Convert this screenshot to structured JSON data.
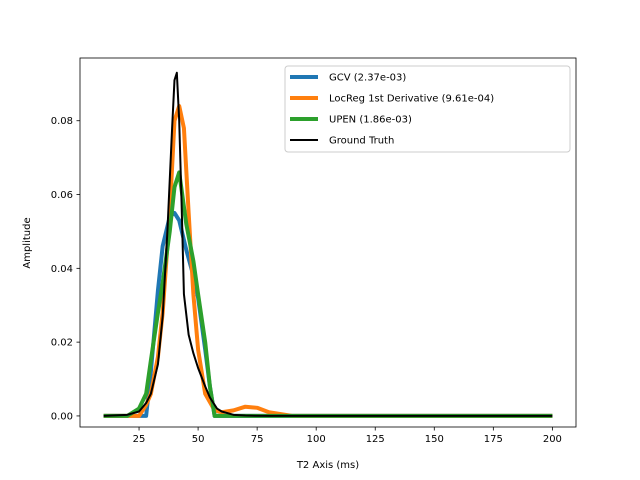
{
  "chart_data": {
    "type": "line",
    "xlabel": "T2 Axis (ms)",
    "ylabel": "Amplitude",
    "xlim": [
      0,
      210
    ],
    "ylim": [
      -0.003,
      0.097
    ],
    "xticks": [
      25,
      50,
      75,
      100,
      125,
      150,
      175,
      200
    ],
    "yticks": [
      0.0,
      0.02,
      0.04,
      0.06,
      0.08
    ],
    "ytick_labels": [
      "0.00",
      "0.02",
      "0.04",
      "0.06",
      "0.08"
    ],
    "grid": false,
    "legend_position": "top-right",
    "series": [
      {
        "name": "GCV  (2.37e-03)",
        "color": "#1f77b4",
        "x": [
          10,
          20,
          25,
          28,
          30,
          33,
          35,
          38,
          40,
          42,
          45,
          48,
          50,
          53,
          55,
          57,
          60,
          70,
          80,
          100,
          150,
          200
        ],
        "y": [
          0,
          0,
          0,
          0,
          0.012,
          0.034,
          0.046,
          0.054,
          0.055,
          0.053,
          0.045,
          0.038,
          0.032,
          0.018,
          0.008,
          0,
          0,
          0,
          0,
          0,
          0,
          0
        ]
      },
      {
        "name": "LocReg  1st Derivative (9.61e-04)",
        "color": "#ff7f0e",
        "x": [
          10,
          20,
          25,
          28,
          30,
          33,
          35,
          38,
          40,
          42,
          44,
          46,
          48,
          50,
          53,
          57,
          60,
          65,
          70,
          75,
          80,
          90,
          100,
          150,
          200
        ],
        "y": [
          0,
          0,
          0,
          0.003,
          0.006,
          0.016,
          0.028,
          0.055,
          0.08,
          0.084,
          0.078,
          0.055,
          0.033,
          0.018,
          0.006,
          0.0015,
          0.001,
          0.0015,
          0.0025,
          0.0022,
          0.001,
          0,
          0,
          0,
          0
        ]
      },
      {
        "name": "UPEN  (1.86e-03)",
        "color": "#2ca02c",
        "x": [
          10,
          20,
          25,
          28,
          30,
          33,
          35,
          38,
          40,
          42,
          45,
          48,
          50,
          53,
          55,
          57,
          60,
          70,
          80,
          100,
          150,
          200
        ],
        "y": [
          0,
          0,
          0.002,
          0.006,
          0.015,
          0.028,
          0.036,
          0.05,
          0.062,
          0.066,
          0.052,
          0.042,
          0.033,
          0.02,
          0.008,
          0,
          0,
          0,
          0,
          0,
          0,
          0
        ]
      },
      {
        "name": "Ground Truth",
        "color": "#000000",
        "x": [
          10,
          20,
          25,
          28,
          30,
          33,
          35,
          37,
          39,
          40,
          41,
          42,
          43,
          44,
          46,
          48,
          50,
          53,
          55,
          58,
          60,
          65,
          70,
          80,
          100,
          150,
          200
        ],
        "y": [
          0,
          0.0003,
          0.0012,
          0.0035,
          0.006,
          0.014,
          0.027,
          0.05,
          0.078,
          0.091,
          0.093,
          0.08,
          0.058,
          0.033,
          0.022,
          0.017,
          0.013,
          0.008,
          0.005,
          0.002,
          0.0012,
          0.0003,
          0.0001,
          0,
          0,
          0,
          0
        ]
      }
    ]
  }
}
